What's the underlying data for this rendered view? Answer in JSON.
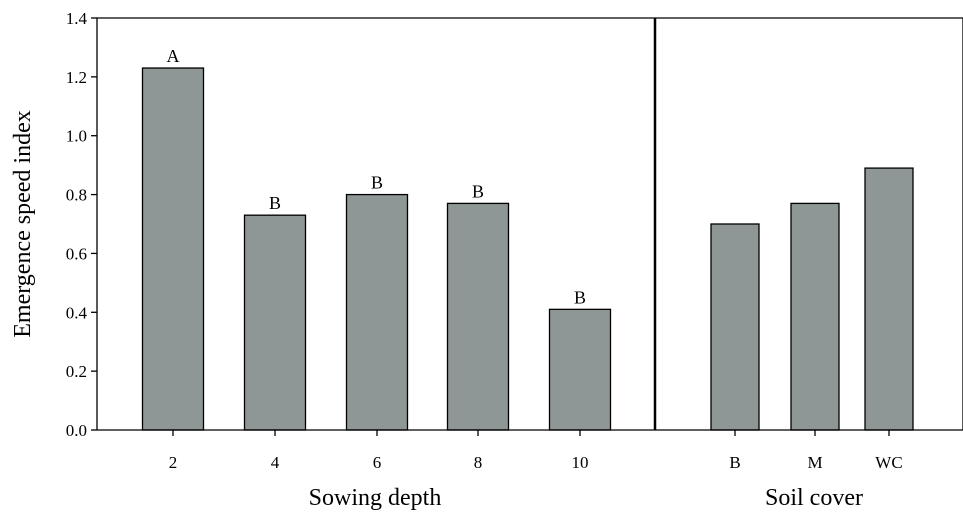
{
  "chart_data": {
    "type": "bar",
    "ylabel": "Emergence speed index",
    "ylim": [
      0,
      1.4
    ],
    "yticks": [
      "0.0",
      "0.2",
      "0.4",
      "0.6",
      "0.8",
      "1.0",
      "1.2",
      "1.4"
    ],
    "bar_color": "#8f9696",
    "panels": [
      {
        "xlabel": "Sowing depth",
        "categories": [
          "2",
          "4",
          "6",
          "8",
          "10"
        ],
        "values": [
          1.23,
          0.73,
          0.8,
          0.77,
          0.41
        ],
        "letters": [
          "A",
          "B",
          "B",
          "B",
          "B"
        ]
      },
      {
        "xlabel": "Soil cover",
        "categories": [
          "B",
          "M",
          "WC"
        ],
        "values": [
          0.7,
          0.77,
          0.89
        ],
        "letters": [
          "",
          "",
          ""
        ]
      }
    ]
  }
}
